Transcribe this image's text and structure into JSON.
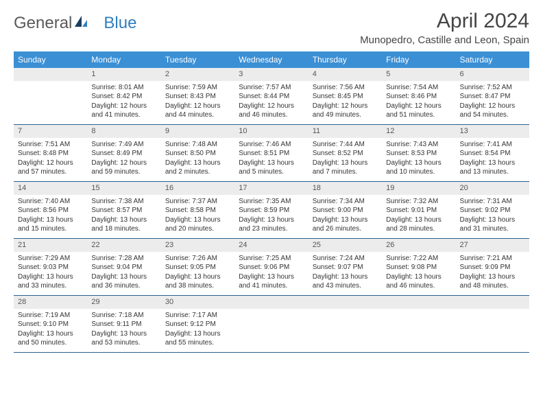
{
  "brand": {
    "general": "General",
    "blue": "Blue"
  },
  "title": "April 2024",
  "location": "Munopedro, Castille and Leon, Spain",
  "colors": {
    "header_bg": "#3b8fd4",
    "header_text": "#ffffff",
    "daynum_bg": "#ececec",
    "row_border": "#2a5f8f",
    "logo_blue": "#2f7fbf",
    "logo_dark": "#1a3d5c"
  },
  "day_names": [
    "Sunday",
    "Monday",
    "Tuesday",
    "Wednesday",
    "Thursday",
    "Friday",
    "Saturday"
  ],
  "weeks": [
    [
      {
        "n": "",
        "sr": "",
        "ss": "",
        "dl1": "",
        "dl2": ""
      },
      {
        "n": "1",
        "sr": "Sunrise: 8:01 AM",
        "ss": "Sunset: 8:42 PM",
        "dl1": "Daylight: 12 hours",
        "dl2": "and 41 minutes."
      },
      {
        "n": "2",
        "sr": "Sunrise: 7:59 AM",
        "ss": "Sunset: 8:43 PM",
        "dl1": "Daylight: 12 hours",
        "dl2": "and 44 minutes."
      },
      {
        "n": "3",
        "sr": "Sunrise: 7:57 AM",
        "ss": "Sunset: 8:44 PM",
        "dl1": "Daylight: 12 hours",
        "dl2": "and 46 minutes."
      },
      {
        "n": "4",
        "sr": "Sunrise: 7:56 AM",
        "ss": "Sunset: 8:45 PM",
        "dl1": "Daylight: 12 hours",
        "dl2": "and 49 minutes."
      },
      {
        "n": "5",
        "sr": "Sunrise: 7:54 AM",
        "ss": "Sunset: 8:46 PM",
        "dl1": "Daylight: 12 hours",
        "dl2": "and 51 minutes."
      },
      {
        "n": "6",
        "sr": "Sunrise: 7:52 AM",
        "ss": "Sunset: 8:47 PM",
        "dl1": "Daylight: 12 hours",
        "dl2": "and 54 minutes."
      }
    ],
    [
      {
        "n": "7",
        "sr": "Sunrise: 7:51 AM",
        "ss": "Sunset: 8:48 PM",
        "dl1": "Daylight: 12 hours",
        "dl2": "and 57 minutes."
      },
      {
        "n": "8",
        "sr": "Sunrise: 7:49 AM",
        "ss": "Sunset: 8:49 PM",
        "dl1": "Daylight: 12 hours",
        "dl2": "and 59 minutes."
      },
      {
        "n": "9",
        "sr": "Sunrise: 7:48 AM",
        "ss": "Sunset: 8:50 PM",
        "dl1": "Daylight: 13 hours",
        "dl2": "and 2 minutes."
      },
      {
        "n": "10",
        "sr": "Sunrise: 7:46 AM",
        "ss": "Sunset: 8:51 PM",
        "dl1": "Daylight: 13 hours",
        "dl2": "and 5 minutes."
      },
      {
        "n": "11",
        "sr": "Sunrise: 7:44 AM",
        "ss": "Sunset: 8:52 PM",
        "dl1": "Daylight: 13 hours",
        "dl2": "and 7 minutes."
      },
      {
        "n": "12",
        "sr": "Sunrise: 7:43 AM",
        "ss": "Sunset: 8:53 PM",
        "dl1": "Daylight: 13 hours",
        "dl2": "and 10 minutes."
      },
      {
        "n": "13",
        "sr": "Sunrise: 7:41 AM",
        "ss": "Sunset: 8:54 PM",
        "dl1": "Daylight: 13 hours",
        "dl2": "and 13 minutes."
      }
    ],
    [
      {
        "n": "14",
        "sr": "Sunrise: 7:40 AM",
        "ss": "Sunset: 8:56 PM",
        "dl1": "Daylight: 13 hours",
        "dl2": "and 15 minutes."
      },
      {
        "n": "15",
        "sr": "Sunrise: 7:38 AM",
        "ss": "Sunset: 8:57 PM",
        "dl1": "Daylight: 13 hours",
        "dl2": "and 18 minutes."
      },
      {
        "n": "16",
        "sr": "Sunrise: 7:37 AM",
        "ss": "Sunset: 8:58 PM",
        "dl1": "Daylight: 13 hours",
        "dl2": "and 20 minutes."
      },
      {
        "n": "17",
        "sr": "Sunrise: 7:35 AM",
        "ss": "Sunset: 8:59 PM",
        "dl1": "Daylight: 13 hours",
        "dl2": "and 23 minutes."
      },
      {
        "n": "18",
        "sr": "Sunrise: 7:34 AM",
        "ss": "Sunset: 9:00 PM",
        "dl1": "Daylight: 13 hours",
        "dl2": "and 26 minutes."
      },
      {
        "n": "19",
        "sr": "Sunrise: 7:32 AM",
        "ss": "Sunset: 9:01 PM",
        "dl1": "Daylight: 13 hours",
        "dl2": "and 28 minutes."
      },
      {
        "n": "20",
        "sr": "Sunrise: 7:31 AM",
        "ss": "Sunset: 9:02 PM",
        "dl1": "Daylight: 13 hours",
        "dl2": "and 31 minutes."
      }
    ],
    [
      {
        "n": "21",
        "sr": "Sunrise: 7:29 AM",
        "ss": "Sunset: 9:03 PM",
        "dl1": "Daylight: 13 hours",
        "dl2": "and 33 minutes."
      },
      {
        "n": "22",
        "sr": "Sunrise: 7:28 AM",
        "ss": "Sunset: 9:04 PM",
        "dl1": "Daylight: 13 hours",
        "dl2": "and 36 minutes."
      },
      {
        "n": "23",
        "sr": "Sunrise: 7:26 AM",
        "ss": "Sunset: 9:05 PM",
        "dl1": "Daylight: 13 hours",
        "dl2": "and 38 minutes."
      },
      {
        "n": "24",
        "sr": "Sunrise: 7:25 AM",
        "ss": "Sunset: 9:06 PM",
        "dl1": "Daylight: 13 hours",
        "dl2": "and 41 minutes."
      },
      {
        "n": "25",
        "sr": "Sunrise: 7:24 AM",
        "ss": "Sunset: 9:07 PM",
        "dl1": "Daylight: 13 hours",
        "dl2": "and 43 minutes."
      },
      {
        "n": "26",
        "sr": "Sunrise: 7:22 AM",
        "ss": "Sunset: 9:08 PM",
        "dl1": "Daylight: 13 hours",
        "dl2": "and 46 minutes."
      },
      {
        "n": "27",
        "sr": "Sunrise: 7:21 AM",
        "ss": "Sunset: 9:09 PM",
        "dl1": "Daylight: 13 hours",
        "dl2": "and 48 minutes."
      }
    ],
    [
      {
        "n": "28",
        "sr": "Sunrise: 7:19 AM",
        "ss": "Sunset: 9:10 PM",
        "dl1": "Daylight: 13 hours",
        "dl2": "and 50 minutes."
      },
      {
        "n": "29",
        "sr": "Sunrise: 7:18 AM",
        "ss": "Sunset: 9:11 PM",
        "dl1": "Daylight: 13 hours",
        "dl2": "and 53 minutes."
      },
      {
        "n": "30",
        "sr": "Sunrise: 7:17 AM",
        "ss": "Sunset: 9:12 PM",
        "dl1": "Daylight: 13 hours",
        "dl2": "and 55 minutes."
      },
      {
        "n": "",
        "sr": "",
        "ss": "",
        "dl1": "",
        "dl2": ""
      },
      {
        "n": "",
        "sr": "",
        "ss": "",
        "dl1": "",
        "dl2": ""
      },
      {
        "n": "",
        "sr": "",
        "ss": "",
        "dl1": "",
        "dl2": ""
      },
      {
        "n": "",
        "sr": "",
        "ss": "",
        "dl1": "",
        "dl2": ""
      }
    ]
  ]
}
